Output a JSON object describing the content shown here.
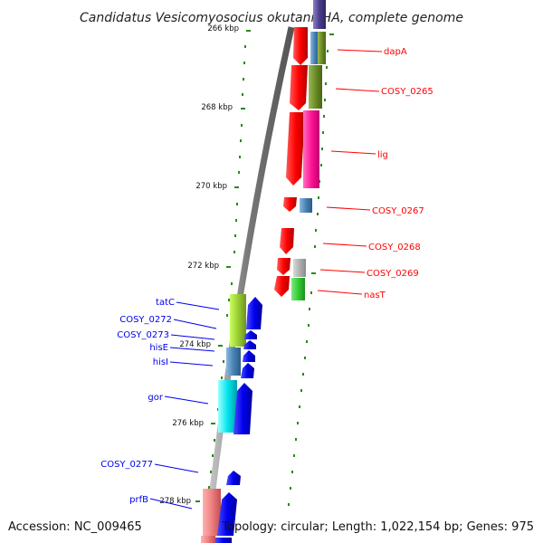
{
  "header": {
    "title": "Candidatus Vesicomyosocius okutanii HA, complete genome"
  },
  "footer": {
    "accession": "Accession: NC_009465",
    "summary": "Topology: circular; Length: 1,022,154 bp; Genes: 975"
  },
  "colors": {
    "red": "#ff0000",
    "blue": "#0000ee",
    "tick": "#2a8a1a",
    "backbone": "#777777"
  },
  "kbp_labels": [
    "266 kbp",
    "268 kbp",
    "270 kbp",
    "272 kbp",
    "274 kbp",
    "276 kbp",
    "278 kbp"
  ],
  "genes_right": [
    "dapA",
    "COSY_0265",
    "lig",
    "COSY_0267",
    "COSY_0268",
    "COSY_0269",
    "nasT"
  ],
  "genes_left": [
    "tatC",
    "COSY_0272",
    "COSY_0273",
    "hisE",
    "hisI",
    "gor",
    "COSY_0277",
    "prfB"
  ]
}
